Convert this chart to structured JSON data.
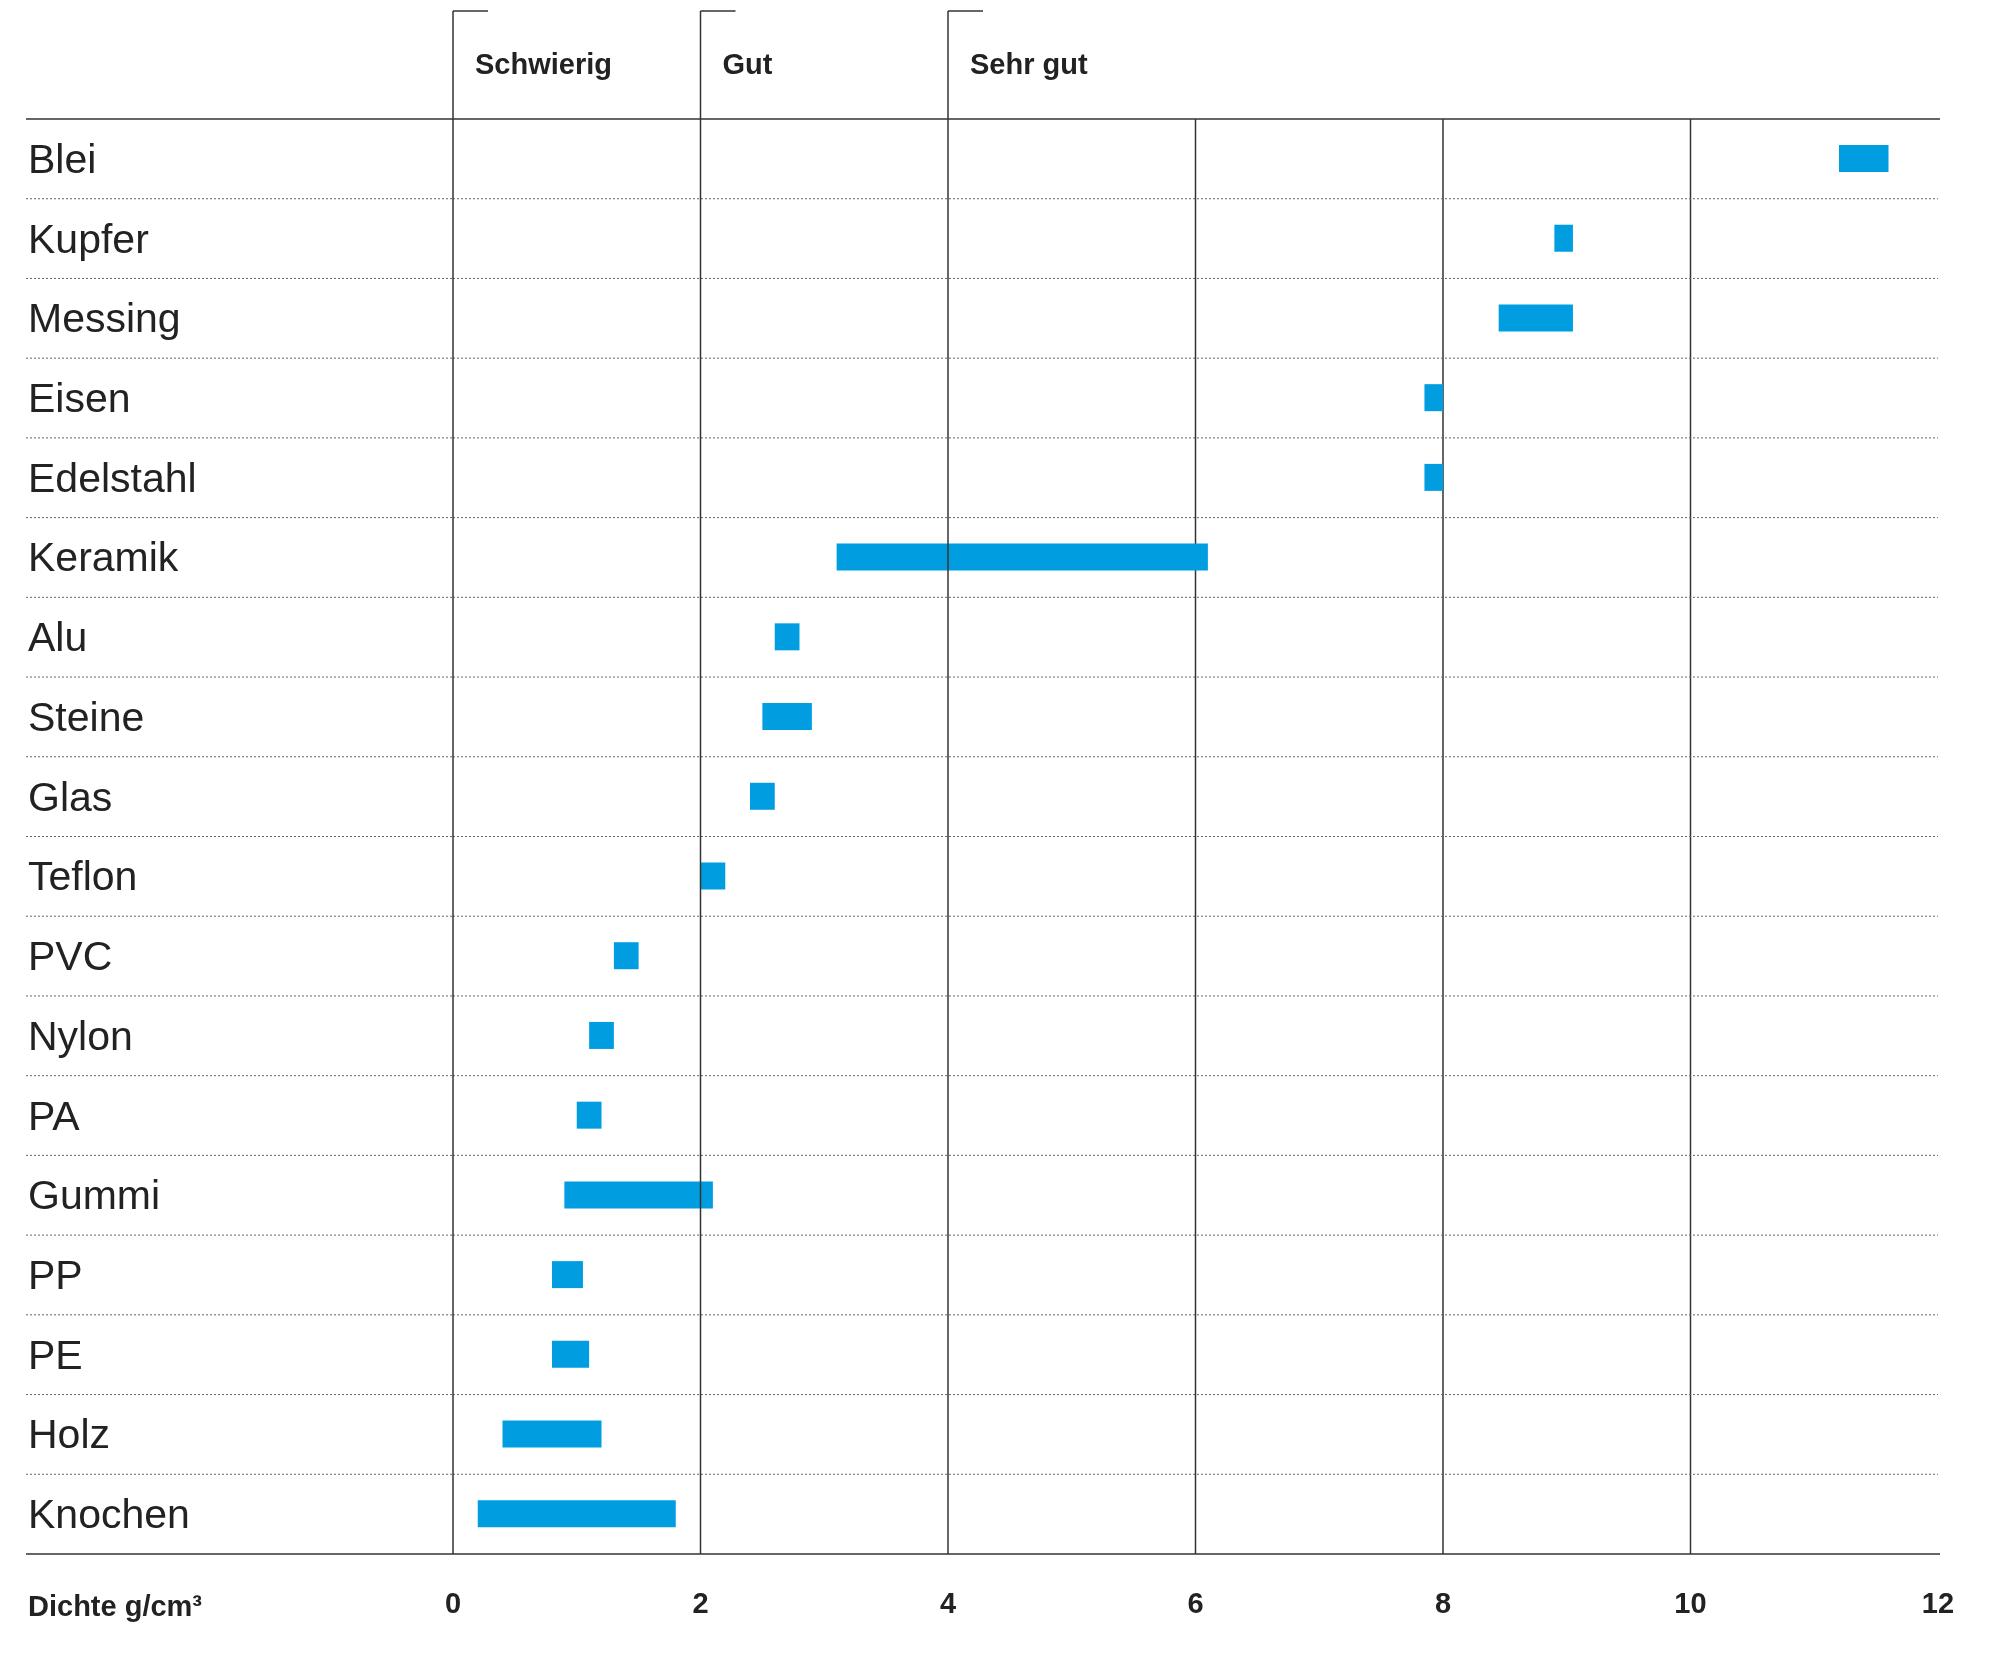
{
  "chart_data": {
    "type": "bar",
    "orientation": "horizontal",
    "xlabel": "Dichte g/cm³",
    "categories": [
      "Blei",
      "Kupfer",
      "Messing",
      "Eisen",
      "Edelstahl",
      "Keramik",
      "Alu",
      "Steine",
      "Glas",
      "Teflon",
      "PVC",
      "Nylon",
      "PA",
      "Gummi",
      "PP",
      "PE",
      "Holz",
      "Knochen"
    ],
    "base": [
      11.2,
      8.9,
      8.45,
      7.85,
      7.85,
      3.1,
      2.6,
      2.5,
      2.4,
      2.0,
      1.3,
      1.1,
      1.0,
      0.9,
      0.8,
      0.8,
      0.4,
      0.2
    ],
    "values": [
      0.4,
      0.15,
      0.6,
      0.15,
      0.15,
      3.0,
      0.2,
      0.4,
      0.2,
      0.2,
      0.2,
      0.2,
      0.2,
      1.2,
      0.25,
      0.3,
      0.8,
      1.6
    ],
    "color": "#009ee0",
    "xlim": [
      0,
      12
    ],
    "xticks": [
      0,
      2,
      4,
      6,
      8,
      10,
      12
    ],
    "grid": true,
    "ref_lines": [
      {
        "axis": "x",
        "value": 0,
        "label": "Schwierig"
      },
      {
        "axis": "x",
        "value": 2,
        "label": "Gut"
      },
      {
        "axis": "x",
        "value": 4,
        "label": "Sehr gut"
      }
    ]
  }
}
